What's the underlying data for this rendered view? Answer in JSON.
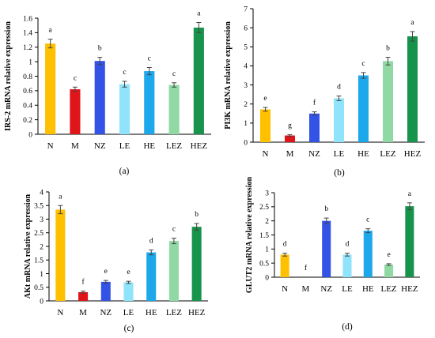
{
  "colors": {
    "N": "#FFC000",
    "M": "#E0151A",
    "NZ": "#3352E6",
    "LE": "#8FE3FA",
    "HE": "#1CA8EA",
    "LEZ": "#90D9A4",
    "HEZ": "#17934B"
  },
  "chart_data": [
    {
      "type": "bar",
      "panel": "(a)",
      "ylabel": "IRS-2 mRNA relative expression",
      "categories": [
        "N",
        "M",
        "NZ",
        "LE",
        "HE",
        "LEZ",
        "HEZ"
      ],
      "values": [
        1.25,
        0.62,
        1.01,
        0.69,
        0.87,
        0.68,
        1.47
      ],
      "errors": [
        0.06,
        0.03,
        0.05,
        0.04,
        0.05,
        0.03,
        0.07
      ],
      "letters": [
        "a",
        "c",
        "b",
        "c",
        "c",
        "c",
        "a"
      ],
      "ylim": [
        0,
        1.6
      ],
      "yticks": [
        0,
        0.2,
        0.4,
        0.6,
        0.8,
        1,
        1.2,
        1.4,
        1.6
      ],
      "ytick_labels": [
        "0",
        "0.2",
        "0.4",
        "0.6",
        "0.8",
        "1",
        "1.2",
        "1.4",
        "1.6"
      ],
      "grid": false
    },
    {
      "type": "bar",
      "panel": "(b)",
      "ylabel": "PI3K mRNA relative expression",
      "categories": [
        "N",
        "M",
        "NZ",
        "LE",
        "HE",
        "LEZ",
        "HEZ"
      ],
      "values": [
        1.72,
        0.35,
        1.5,
        2.3,
        3.5,
        4.25,
        5.55
      ],
      "errors": [
        0.1,
        0.04,
        0.09,
        0.12,
        0.15,
        0.2,
        0.25
      ],
      "letters": [
        "e",
        "g",
        "f",
        "d",
        "c",
        "b",
        "a"
      ],
      "ylim": [
        0,
        7
      ],
      "yticks": [
        0,
        1,
        2,
        3,
        4,
        5,
        6,
        7
      ],
      "ytick_labels": [
        "0",
        "1",
        "2",
        "3",
        "4",
        "5",
        "6",
        "7"
      ],
      "grid": false
    },
    {
      "type": "bar",
      "panel": "(c)",
      "ylabel": "AKt mRNA relative expression",
      "categories": [
        "N",
        "M",
        "NZ",
        "LE",
        "HE",
        "LEZ",
        "HEZ"
      ],
      "values": [
        3.35,
        0.32,
        0.7,
        0.68,
        1.78,
        2.2,
        2.72
      ],
      "errors": [
        0.15,
        0.04,
        0.05,
        0.04,
        0.09,
        0.1,
        0.12
      ],
      "letters": [
        "a",
        "f",
        "e",
        "e",
        "d",
        "c",
        "b"
      ],
      "ylim": [
        0,
        4
      ],
      "yticks": [
        0,
        0.5,
        1,
        1.5,
        2,
        2.5,
        3,
        3.5,
        4
      ],
      "ytick_labels": [
        "0",
        "0.5",
        "1",
        "1.5",
        "2",
        "2.5",
        "3",
        "3.5",
        "4"
      ],
      "grid": false
    },
    {
      "type": "bar",
      "panel": "(d)",
      "ylabel": "GLUT2 mRNA relative expression",
      "categories": [
        "N",
        "M",
        "NZ",
        "LE",
        "HE",
        "LEZ",
        "HEZ"
      ],
      "values": [
        0.8,
        0,
        2.0,
        0.8,
        1.65,
        0.45,
        2.52
      ],
      "errors": [
        0.05,
        0,
        0.1,
        0.05,
        0.07,
        0.03,
        0.12
      ],
      "letters": [
        "d",
        "f",
        "b",
        "d",
        "c",
        "e",
        "a"
      ],
      "ylim": [
        0,
        3
      ],
      "yticks": [
        0,
        0.5,
        1,
        1.5,
        2,
        2.5,
        3
      ],
      "ytick_labels": [
        "0",
        "0.5",
        "1",
        "1.5",
        "2",
        "2.5",
        "3"
      ],
      "grid": false
    }
  ]
}
